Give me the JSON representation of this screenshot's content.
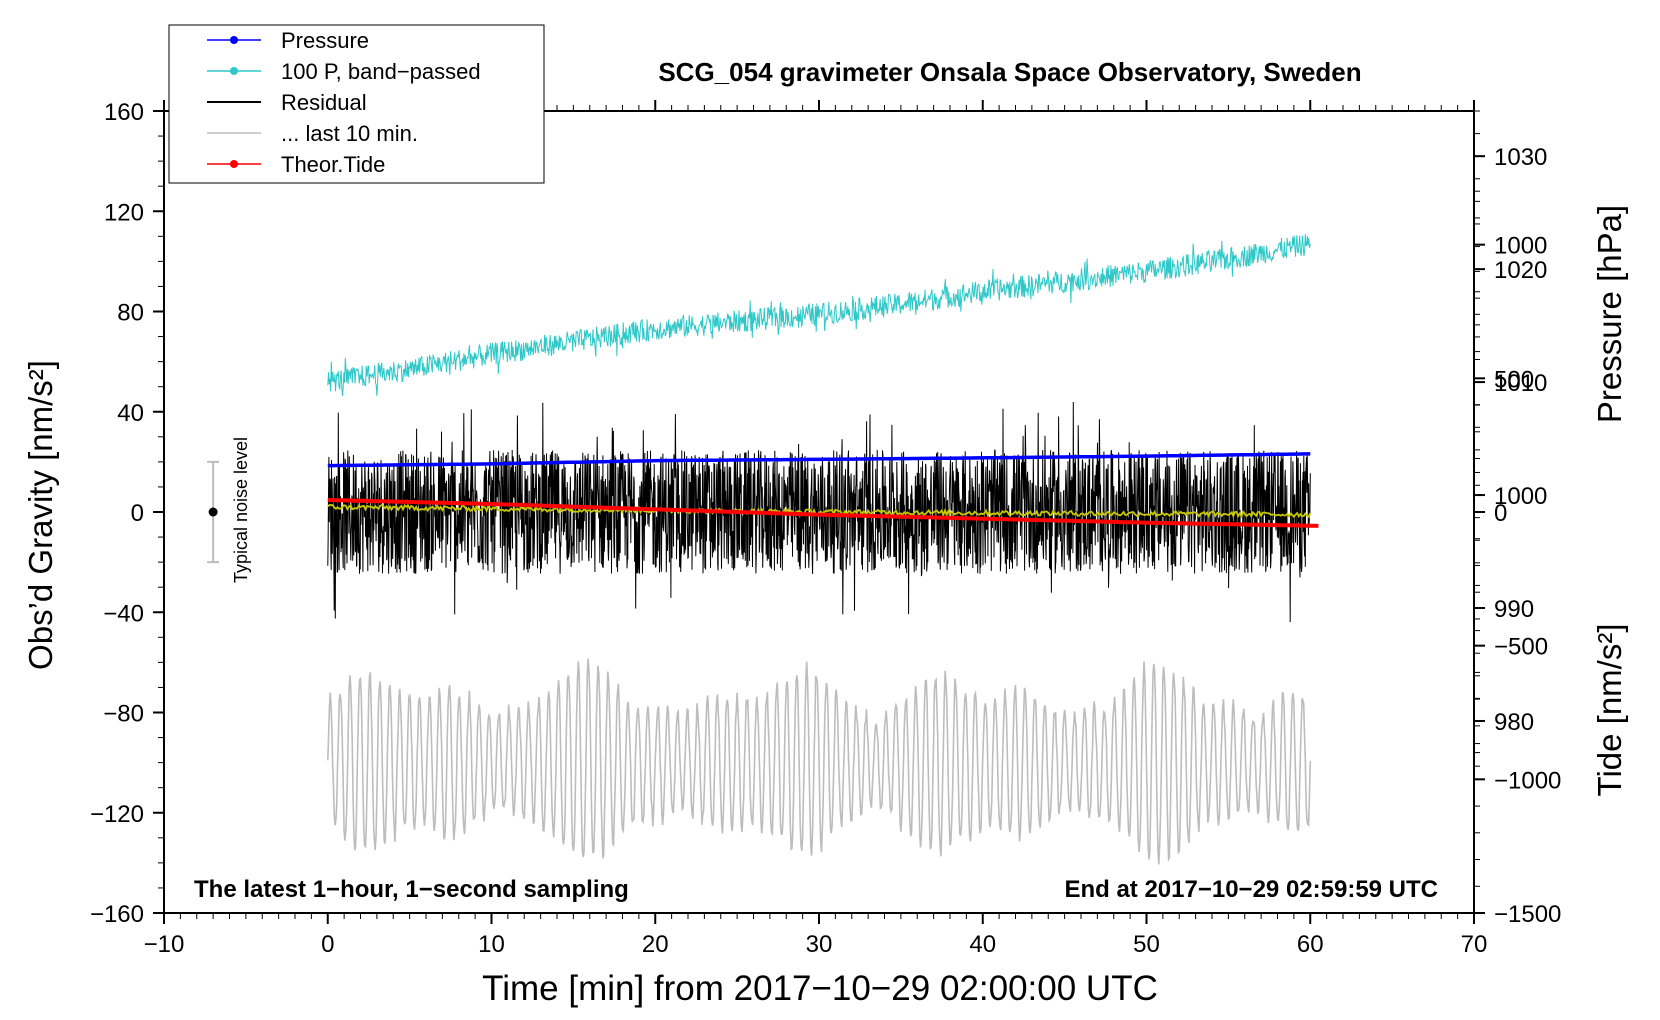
{
  "chart_data": {
    "type": "line",
    "title": "SCG_054 gravimeter Onsala Space Observatory, Sweden",
    "xlabel": "Time [min] from 2017−10−29 02:00:00 UTC",
    "ylabel_left": "Obs’d Gravity [nm/s²]",
    "ylabel_right_top": "Pressure [hPa]",
    "ylabel_right_bottom": "Tide [nm/s²]",
    "xlim": [
      -10,
      70
    ],
    "ylim": [
      -160,
      160
    ],
    "pressure_axis_range": [
      963,
      1034
    ],
    "tide_axis_range": [
      -1500,
      1500
    ],
    "x_ticks": [
      -10,
      0,
      10,
      20,
      30,
      40,
      50,
      60,
      70
    ],
    "x_tick_labels": [
      "−10",
      "0",
      "10",
      "20",
      "30",
      "40",
      "50",
      "60",
      "70"
    ],
    "y_ticks": [
      -160,
      -120,
      -80,
      -40,
      0,
      40,
      80,
      120,
      160
    ],
    "y_tick_labels": [
      "−160",
      "−120",
      "−80",
      "−40",
      "0",
      "40",
      "80",
      "120",
      "160"
    ],
    "pressure_ticks": [
      980,
      990,
      1000,
      1010,
      1020,
      1030
    ],
    "pressure_tick_labels": [
      "980",
      "990",
      "1000",
      "1010",
      "1020",
      "1030"
    ],
    "tide_ticks": [
      -1500,
      -1000,
      -500,
      0,
      500,
      1000
    ],
    "tide_tick_labels": [
      "−1500",
      "−1000",
      "−500",
      "0",
      "500",
      "1000"
    ],
    "legend": {
      "placement": "top-left",
      "entries": [
        {
          "label": "Pressure",
          "color": "#0000ff",
          "marker": true
        },
        {
          "label": "100 P, band−passed",
          "color": "#2ec8c8",
          "marker": true
        },
        {
          "label": "Residual",
          "color": "#000000",
          "marker": false
        },
        {
          "label": "... last 10 min.",
          "color": "#bdbdbd",
          "marker": false
        },
        {
          "label": "Theor.Tide",
          "color": "#ff0000",
          "marker": true
        }
      ]
    },
    "series": [
      {
        "name": "Pressure",
        "axis": "gravity",
        "color": "#0000ff",
        "x": [
          0,
          10,
          20,
          30,
          40,
          50,
          60
        ],
        "y": [
          18.5,
          19.2,
          20.5,
          21.0,
          21.6,
          22.3,
          23.2
        ]
      },
      {
        "name": "100 P, band-passed",
        "axis": "gravity",
        "color": "#2ec8c8",
        "x": [
          0,
          5,
          10,
          15,
          20,
          25,
          30,
          35,
          40,
          45,
          50,
          55,
          60
        ],
        "y": [
          52,
          57,
          63,
          68,
          73,
          76,
          79,
          83,
          88,
          92,
          96,
          101,
          107
        ]
      },
      {
        "name": "Residual",
        "axis": "gravity",
        "color": "#000000",
        "x": [
          0,
          60
        ],
        "y": [
          0,
          0
        ],
        "amplitude": 45
      },
      {
        "name": "Residual mean",
        "axis": "gravity",
        "color": "#c8c800",
        "x": [
          0,
          15,
          30,
          45,
          60
        ],
        "y": [
          2,
          1,
          0,
          -0.5,
          -1
        ]
      },
      {
        "name": "... last 10 min.",
        "axis": "gravity",
        "color": "#bdbdbd",
        "x": [
          0,
          60
        ],
        "y": [
          -100,
          -100
        ],
        "amplitude": 40
      },
      {
        "name": "Theor.Tide",
        "axis": "tide",
        "color": "#ff0000",
        "x": [
          0,
          10,
          20,
          30,
          40,
          50,
          60.5
        ],
        "y": [
          45,
          30,
          10,
          -10,
          -25,
          -40,
          -52
        ]
      }
    ],
    "noise_bar": {
      "x": -7,
      "center": 0,
      "half_range": 20,
      "label": "Typical noise level"
    },
    "annotations": {
      "left": "The latest 1−hour, 1−second sampling",
      "right": "End at 2017−10−29 02:59:59 UTC"
    }
  }
}
